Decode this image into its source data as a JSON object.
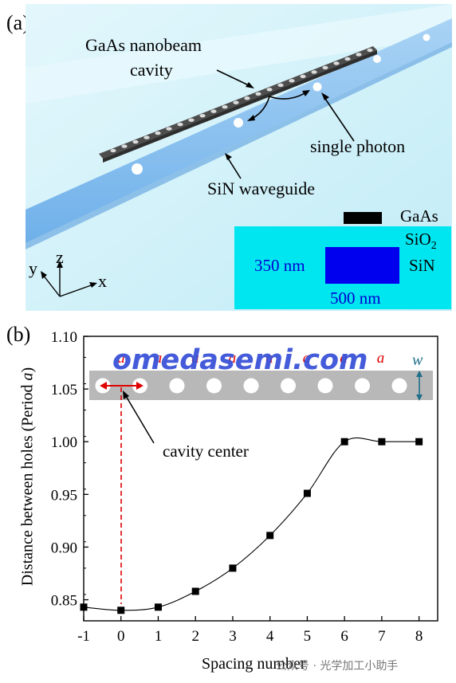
{
  "panel_a": {
    "label": "(a)",
    "nanobeam_label_line1": "GaAs nanobeam",
    "nanobeam_label_line2": "cavity",
    "single_photon_label": "single photon",
    "waveguide_label": "SiN waveguide",
    "axes": {
      "y": "y",
      "z": "z",
      "x": "x"
    },
    "inset": {
      "gaas": "GaAs",
      "sio2": "SiO",
      "sio2_sub": "2",
      "sin": "SiN",
      "height": "350 nm",
      "width": "500 nm"
    },
    "colors": {
      "cladding": "#cdeff8",
      "waveguide": "#8fc4f2",
      "beam": "#4a4a4a",
      "inset_bg": "#00e6f0",
      "inset_sin": "#0000ee"
    }
  },
  "panel_b": {
    "label": "(b)",
    "watermark": "omedasemi.com",
    "cavity_center_label": "cavity center",
    "period_letter": "a",
    "width_letter": "w",
    "footer": "公众号 · 光学加工小助手"
  },
  "chart_data": {
    "type": "line",
    "xlabel": "Spacing number",
    "ylabel": "Distance between holes (Period a)",
    "xlim": [
      -1,
      8.5
    ],
    "ylim": [
      0.83,
      1.1
    ],
    "x_ticks": [
      "-1",
      "0",
      "1",
      "2",
      "3",
      "4",
      "5",
      "6",
      "7",
      "8"
    ],
    "y_ticks": [
      "0.85",
      "0.90",
      "0.95",
      "1.00",
      "1.05",
      "1.10"
    ],
    "x": [
      -1,
      0,
      1,
      2,
      3,
      4,
      5,
      6,
      7,
      8
    ],
    "y": [
      0.843,
      0.84,
      0.843,
      0.858,
      0.88,
      0.911,
      0.951,
      1.0,
      1.0,
      1.0
    ],
    "marker": "square",
    "color": "#000000"
  }
}
